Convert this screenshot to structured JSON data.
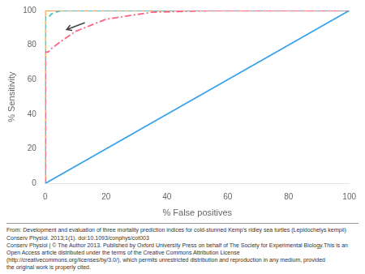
{
  "chart_data": {
    "type": "line",
    "xlabel": "% False positives",
    "ylabel": "% Sensitivity",
    "xlim": [
      0,
      100
    ],
    "ylim": [
      0,
      100
    ],
    "xticks": [
      0,
      20,
      40,
      60,
      80,
      100
    ],
    "yticks": [
      0,
      20,
      40,
      60,
      80,
      100
    ],
    "grid": false,
    "caption": [
      "From: Development and evaluation of three mortality prediction indices for cold-stunned Kemp’s ridley sea turtles (Lepidochelys kempii)",
      "Conserv Physiol. 2013;1(1). doi:10.1093/conphys/cot003",
      "Conserv Physiol | © The Author 2013. Published by Oxford University Press on behalf of The Society for Experimental Biology.This is an Open Access article distributed under the terms of the Creative Commons Attribution License",
      "(http://creativecommons.org/licenses/by/3.0/), which permits unrestricted distribution and reproduction in any medium, provided",
      "the original work is properly cited."
    ],
    "series": [
      {
        "x": [
          0,
          100
        ],
        "values": [
          0,
          100
        ],
        "line_style": "solid"
      },
      {
        "x": [
          0,
          0,
          0,
          0,
          0,
          0,
          0,
          0,
          1,
          2,
          5,
          10,
          20,
          35,
          55,
          75,
          100
        ],
        "values": [
          0,
          16,
          30,
          42,
          52,
          62,
          70,
          76,
          76,
          78,
          82,
          88,
          95,
          99,
          100,
          100,
          100
        ],
        "line_style": "dashdot"
      },
      {
        "x": [
          0,
          0,
          0,
          0,
          0,
          0,
          0,
          0,
          0,
          1,
          2,
          5,
          12,
          25,
          45,
          70,
          90,
          100
        ],
        "values": [
          0,
          20,
          36,
          50,
          64,
          74,
          80,
          90,
          96,
          96,
          98,
          100,
          100,
          100,
          100,
          100,
          100,
          100
        ],
        "line_style": "dashed"
      },
      {
        "x": [
          0,
          0,
          0,
          0,
          0,
          0,
          0,
          0,
          0,
          1,
          1,
          2,
          4,
          10,
          20,
          40,
          60,
          80,
          100
        ],
        "values": [
          0,
          20,
          36,
          50,
          64,
          74,
          88,
          96,
          100,
          100,
          100,
          100,
          100,
          100,
          100,
          100,
          100,
          100,
          100
        ],
        "line_style": "solid"
      }
    ],
    "arrows": [
      {
        "x_from": 13,
        "y_from": 93,
        "x_to": 7,
        "y_to": 89
      }
    ]
  }
}
